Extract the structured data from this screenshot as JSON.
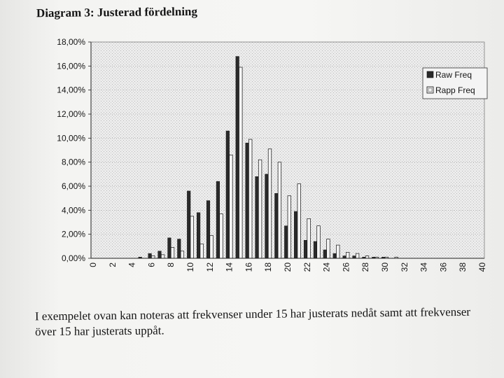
{
  "title": "Diagram 3: Justerad fördelning",
  "caption": "I exempelet ovan kan noteras att frekvenser under 15 har justerats nedåt samt att frekvenser över 15 har justerats uppåt.",
  "colors": {
    "raw": "#2a2a2a",
    "rapp": "#f4f4f4",
    "plot_bg": "#e6e6e6",
    "ink": "#141414"
  },
  "chart_data": {
    "type": "bar",
    "title": "",
    "xlabel": "",
    "ylabel": "",
    "grid": true,
    "legend_position": "top-right",
    "ylim": [
      0,
      18
    ],
    "y_ticks": [
      "0,00%",
      "2,00%",
      "4,00%",
      "6,00%",
      "8,00%",
      "10,00%",
      "12,00%",
      "14,00%",
      "16,00%",
      "18,00%"
    ],
    "x_ticks": [
      "0",
      "2",
      "4",
      "6",
      "8",
      "10",
      "12",
      "14",
      "16",
      "18",
      "20",
      "22",
      "24",
      "26",
      "28",
      "30",
      "32",
      "34",
      "36",
      "38",
      "40"
    ],
    "categories": [
      0,
      1,
      2,
      3,
      4,
      5,
      6,
      7,
      8,
      9,
      10,
      11,
      12,
      13,
      14,
      15,
      16,
      17,
      18,
      19,
      20,
      21,
      22,
      23,
      24,
      25,
      26,
      27,
      28,
      29,
      30,
      31,
      32,
      33,
      34,
      35,
      36,
      37,
      38,
      39,
      40
    ],
    "series": [
      {
        "name": "Raw Freq",
        "values": [
          0,
          0,
          0,
          0,
          0,
          0.1,
          0.4,
          0.6,
          1.7,
          1.6,
          5.6,
          3.8,
          4.8,
          6.4,
          10.6,
          16.8,
          9.6,
          6.8,
          7.0,
          5.4,
          2.7,
          3.9,
          1.5,
          1.4,
          0.7,
          0.4,
          0.2,
          0.2,
          0.1,
          0.1,
          0.1,
          0,
          0,
          0,
          0,
          0,
          0,
          0,
          0,
          0,
          0
        ]
      },
      {
        "name": "Rapp Freq",
        "values": [
          0,
          0,
          0,
          0,
          0,
          0,
          0.2,
          0.3,
          0.9,
          0.6,
          3.5,
          1.2,
          1.9,
          3.7,
          8.6,
          15.9,
          9.9,
          8.2,
          9.1,
          8.0,
          5.2,
          6.2,
          3.3,
          2.7,
          1.6,
          1.1,
          0.5,
          0.4,
          0.2,
          0.1,
          0.1,
          0.1,
          0,
          0,
          0,
          0,
          0,
          0,
          0,
          0,
          0
        ]
      }
    ]
  }
}
